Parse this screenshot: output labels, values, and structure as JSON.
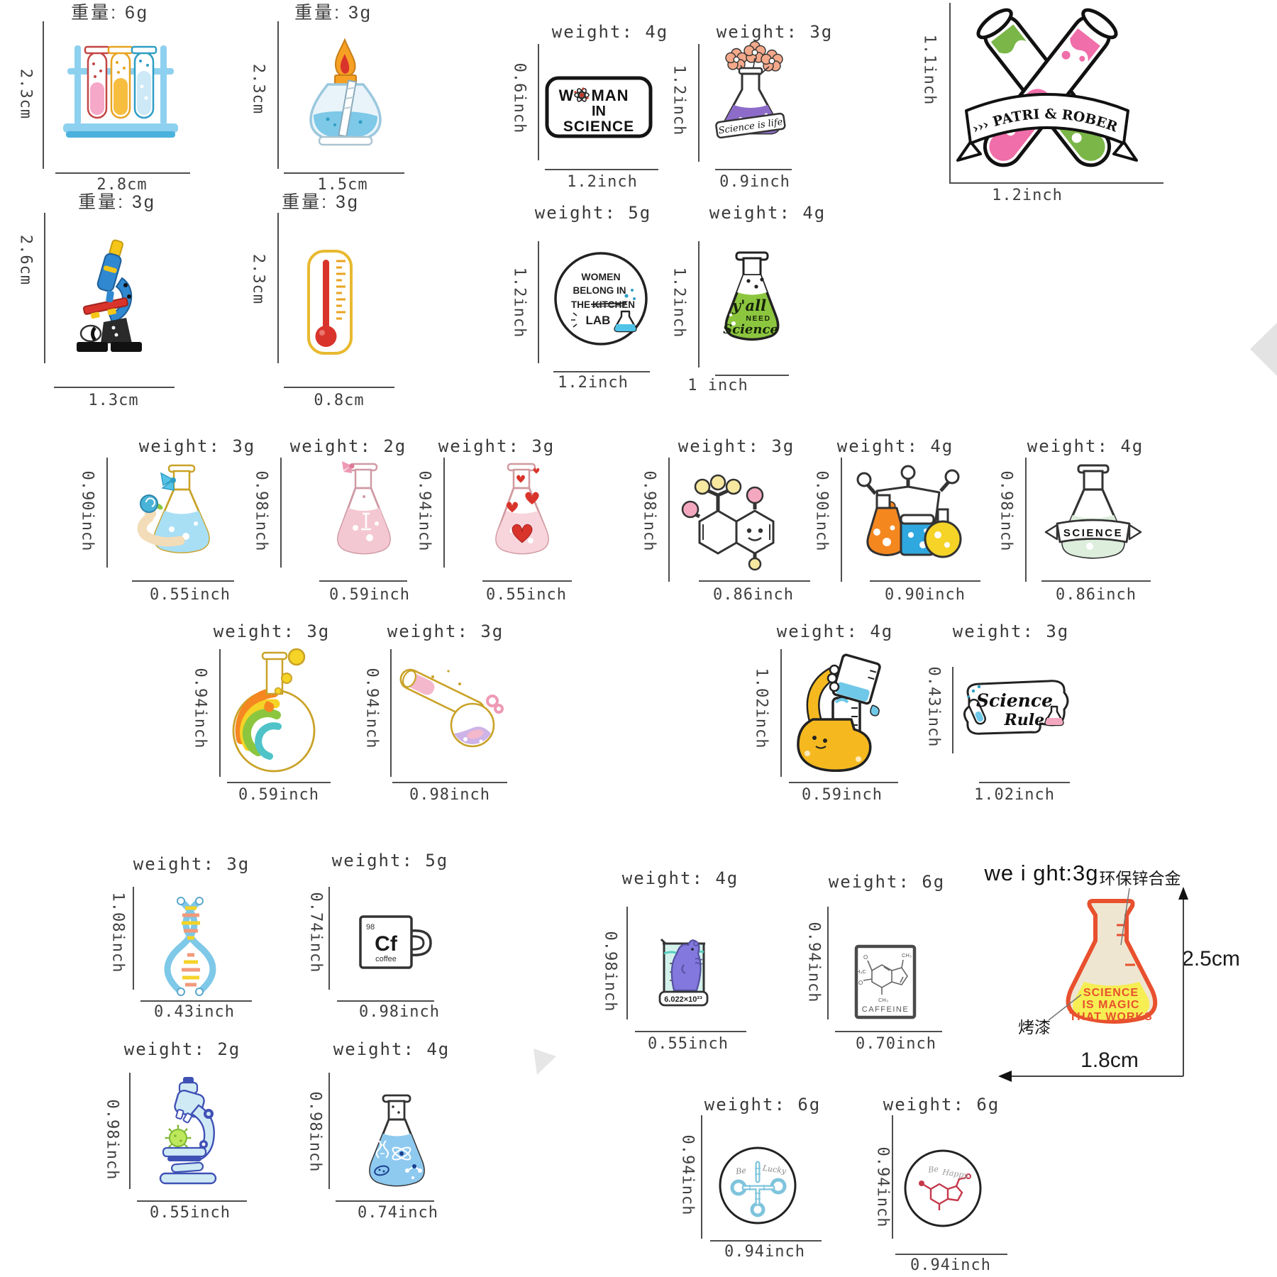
{
  "page": {
    "background": "#ffffff"
  },
  "pins": [
    {
      "name": "test-tube-rack",
      "art": "rack",
      "cn": true,
      "weight": "重量: 6g",
      "height": "2.3cm",
      "width": "2.8cm"
    },
    {
      "name": "alcohol-burner",
      "art": "burner",
      "cn": true,
      "weight": "重量: 3g",
      "height": "2.3cm",
      "width": "1.5cm"
    },
    {
      "name": "woman-in-science",
      "art": "woman",
      "weight": "weight: 4g",
      "height": "0.6inch",
      "width": "1.2inch",
      "t1": "W",
      "t2": "MAN",
      "t3": "IN",
      "t4": "SCIENCE"
    },
    {
      "name": "science-is-life-flask",
      "art": "lifeflask",
      "weight": "weight: 3g",
      "height": "1.2inch",
      "width": "0.9inch",
      "banner": "Science is life"
    },
    {
      "name": "patri-rober-test-tubes",
      "art": "patri",
      "height": "1.1inch",
      "width": "1.2inch",
      "banner": "››› PATRI & ROBER ‹‹‹"
    },
    {
      "name": "microscope",
      "art": "scope1",
      "cn": true,
      "weight": "重量: 3g",
      "height": "2.6cm",
      "width": "1.3cm"
    },
    {
      "name": "thermometer",
      "art": "thermo",
      "cn": true,
      "weight": "重量: 3g",
      "height": "2.3cm",
      "width": "0.8cm"
    },
    {
      "name": "women-belong-in-lab-badge",
      "art": "womenlab",
      "weight": "weight: 5g",
      "height": "1.2inch",
      "width": "1.2inch",
      "l1": "WOMEN",
      "l2": "BELONG IN",
      "l3a": "THE",
      "l3b": "KITCHEN",
      "l4": "LAB"
    },
    {
      "name": "yall-need-science-flask",
      "art": "yall",
      "weight": "weight: 4g",
      "height": "1.2inch",
      "width": "1 inch",
      "l1": "y'all",
      "l2": "NEED",
      "l3": "Science"
    },
    {
      "name": "rose-flask",
      "art": "roseflask",
      "weight": "weight: 3g",
      "height": "0.90inch",
      "width": "0.55inch"
    },
    {
      "name": "pink-bow-flask",
      "art": "pinkflask",
      "weight": "weight: 2g",
      "height": "0.98inch",
      "width": "0.59inch"
    },
    {
      "name": "heart-flask",
      "art": "heartflask",
      "weight": "weight: 3g",
      "height": "0.94inch",
      "width": "0.55inch"
    },
    {
      "name": "smiling-molecule",
      "art": "moleculesmile",
      "weight": "weight: 3g",
      "height": "0.98inch",
      "width": "0.86inch"
    },
    {
      "name": "flask-trio",
      "art": "trio",
      "weight": "weight: 4g",
      "height": "0.90inch",
      "width": "0.90inch"
    },
    {
      "name": "science-banner-flask",
      "art": "sciencebanner",
      "weight": "weight: 4g",
      "height": "0.98inch",
      "width": "0.86inch",
      "banner": "SCIENCE"
    },
    {
      "name": "rainbow-round-flask",
      "art": "rainbow",
      "weight": "weight: 3g",
      "height": "0.94inch",
      "width": "0.59inch"
    },
    {
      "name": "tilted-test-tube-flask",
      "art": "tilted",
      "weight": "weight: 3g",
      "height": "0.94inch",
      "width": "0.98inch"
    },
    {
      "name": "pouring-flask-character",
      "art": "pouring",
      "weight": "weight: 4g",
      "height": "1.02inch",
      "width": "0.59inch"
    },
    {
      "name": "science-rules-badge",
      "art": "rules",
      "weight": "weight: 3g",
      "height": "0.43inch",
      "width": "1.02inch",
      "l1": "Science",
      "l2": "Rules"
    },
    {
      "name": "dna-helix",
      "art": "dna",
      "weight": "weight: 3g",
      "height": "1.08inch",
      "width": "0.43inch"
    },
    {
      "name": "cf-coffee-tile",
      "art": "cf",
      "weight": "weight: 5g",
      "height": "0.74inch",
      "width": "0.98inch",
      "num": "98",
      "sym": "Cf",
      "sub": "coffee"
    },
    {
      "name": "mole-in-beaker",
      "art": "mole",
      "weight": "weight: 4g",
      "height": "0.98inch",
      "width": "0.55inch",
      "label": "6.022×10²³"
    },
    {
      "name": "caffeine-molecule-card",
      "art": "caffeine",
      "weight": "weight: 6g",
      "height": "0.94inch",
      "width": "0.70inch",
      "label": "CAFFEINE",
      "o": "O",
      "m1": "H₃C",
      "m2": "CH₃",
      "m3": "CH₃"
    },
    {
      "name": "science-is-magic-flask",
      "art": "magic",
      "weight": "we i ght:3g",
      "height": "2.5cm",
      "width": "1.8cm",
      "material": "环保锌合金",
      "paint": "烤漆",
      "l1": "SCIENCE",
      "l2": "IS MAGIC",
      "l3": "THAT WORKS"
    },
    {
      "name": "teal-microscope",
      "art": "scope2",
      "weight": "weight: 2g",
      "height": "0.98inch",
      "width": "0.55inch"
    },
    {
      "name": "atom-flask",
      "art": "atomflask",
      "weight": "weight: 4g",
      "height": "0.98inch",
      "width": "0.74inch"
    },
    {
      "name": "be-lucky-badge",
      "art": "belucky",
      "weight": "weight: 6g",
      "height": "0.94inch",
      "width": "0.94inch",
      "l1": "Be",
      "l2": "Lucky"
    },
    {
      "name": "be-happy-badge",
      "art": "behappy",
      "weight": "weight: 6g",
      "height": "0.94inch",
      "width": "0.94inch",
      "l1": "Be",
      "l2": "Happy"
    }
  ]
}
